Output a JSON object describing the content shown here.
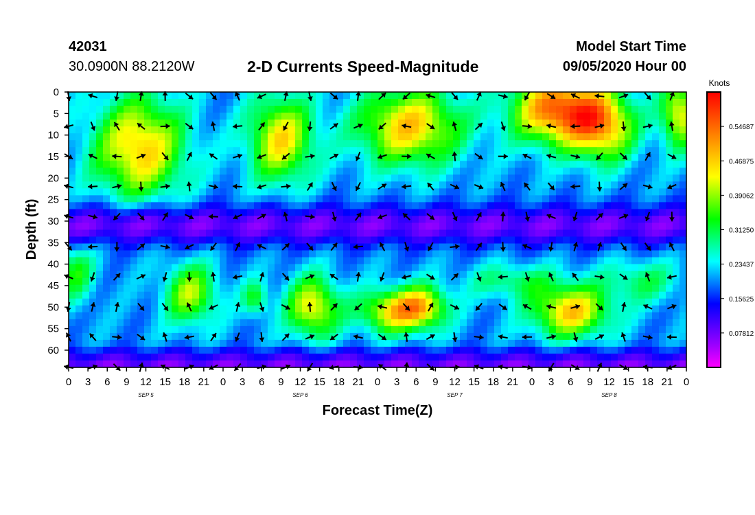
{
  "header": {
    "station_id": "42031",
    "coordinates": "30.0900N 88.2120W",
    "title": "2-D Currents Speed-Magnitude",
    "model_start_label": "Model Start Time",
    "model_start_value": "09/05/2020 Hour 00"
  },
  "colorbar": {
    "unit_label": "Knots",
    "tick_labels": [
      "0.54687",
      "0.46875",
      "0.39062",
      "0.31250",
      "0.23437",
      "0.15625",
      "0.07812"
    ],
    "range": [
      0,
      0.625
    ],
    "colors": [
      "#ff00ff",
      "#a000ff",
      "#5000ff",
      "#0000ff",
      "#0080ff",
      "#00ffff",
      "#00ff80",
      "#00ff00",
      "#80ff00",
      "#ffff00",
      "#ffc000",
      "#ff8000",
      "#ff4000",
      "#ff0000"
    ]
  },
  "chart_data": {
    "type": "heatmap",
    "title": "2-D Currents Speed-Magnitude",
    "xlabel": "Forecast Time(Z)",
    "ylabel": "Depth (ft)",
    "x_range": [
      0,
      96
    ],
    "y_range": [
      0,
      64
    ],
    "y_ticks": [
      "0",
      "5",
      "10",
      "15",
      "20",
      "25",
      "30",
      "35",
      "40",
      "45",
      "50",
      "55",
      "60"
    ],
    "x_ticks": [
      "0",
      "3",
      "6",
      "9",
      "12",
      "15",
      "18",
      "21",
      "0",
      "3",
      "6",
      "9",
      "12",
      "15",
      "18",
      "21",
      "0",
      "3",
      "6",
      "9",
      "12",
      "15",
      "18",
      "21",
      "0",
      "3",
      "6",
      "9",
      "12",
      "15",
      "18",
      "21",
      "0"
    ],
    "day_labels": [
      "SEP 5",
      "SEP 6",
      "SEP 7",
      "SEP 8"
    ],
    "day_label_hours": [
      12,
      36,
      60,
      84
    ],
    "speed_blobs": [
      {
        "t": 11,
        "d": 13,
        "rt": 7,
        "rd": 12,
        "v": 0.47
      },
      {
        "t": 33,
        "d": 11,
        "rt": 5,
        "rd": 10,
        "v": 0.45
      },
      {
        "t": 53,
        "d": 8,
        "rt": 8,
        "rd": 9,
        "v": 0.47
      },
      {
        "t": 76,
        "d": 4,
        "rt": 7,
        "rd": 8,
        "v": 0.55
      },
      {
        "t": 83,
        "d": 8,
        "rt": 5,
        "rd": 8,
        "v": 0.46
      },
      {
        "t": 95,
        "d": 5,
        "rt": 3,
        "rd": 8,
        "v": 0.44
      },
      {
        "t": 19,
        "d": 47,
        "rt": 4,
        "rd": 7,
        "v": 0.4
      },
      {
        "t": 38,
        "d": 50,
        "rt": 4,
        "rd": 7,
        "v": 0.44
      },
      {
        "t": 50,
        "d": 51,
        "rt": 5,
        "rd": 5,
        "v": 0.43
      },
      {
        "t": 55,
        "d": 50,
        "rt": 4,
        "rd": 5,
        "v": 0.43
      },
      {
        "t": 78,
        "d": 51,
        "rt": 6,
        "rd": 6,
        "v": 0.47
      },
      {
        "t": 1,
        "d": 42,
        "rt": 3,
        "rd": 7,
        "v": 0.33
      },
      {
        "t": 29,
        "d": 48,
        "rt": 2,
        "rd": 4,
        "v": 0.33
      },
      {
        "t": 69,
        "d": 44,
        "rt": 7,
        "rd": 4,
        "v": 0.3
      },
      {
        "t": 89,
        "d": 44,
        "rt": 6,
        "rd": 5,
        "v": 0.3
      }
    ],
    "slow_layer": {
      "d_center": 31,
      "d_width": 4.5,
      "v": 0.06
    },
    "bottom_layer": {
      "d_center": 63,
      "v": 0.08
    },
    "arrow_depths": [
      0,
      7,
      14,
      21,
      28,
      35,
      42,
      49,
      56,
      63
    ],
    "arrow_spacing_hours": 3.75
  }
}
